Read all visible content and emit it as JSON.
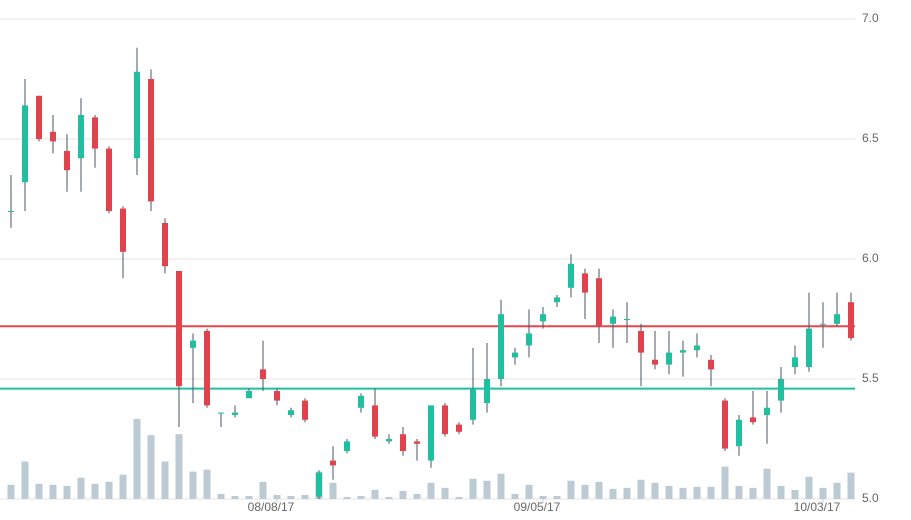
{
  "chart_data": {
    "type": "candlestick",
    "categories": [
      null,
      null,
      null,
      null,
      null,
      null,
      null,
      null,
      null,
      null,
      null,
      null,
      null,
      null,
      null,
      null,
      null,
      null,
      null,
      "08/08/17",
      null,
      null,
      null,
      null,
      null,
      null,
      null,
      null,
      null,
      null,
      null,
      null,
      null,
      null,
      null,
      null,
      null,
      null,
      "09/05/17",
      null,
      null,
      null,
      null,
      null,
      null,
      null,
      null,
      null,
      null,
      null,
      null,
      null,
      null,
      null,
      null,
      null,
      null,
      null,
      "10/03/17",
      null,
      null
    ],
    "open": [
      6.2,
      6.32,
      6.68,
      6.53,
      6.45,
      6.42,
      6.59,
      6.46,
      6.21,
      6.42,
      6.75,
      6.15,
      5.95,
      5.63,
      5.7,
      5.36,
      5.35,
      5.42,
      5.54,
      5.45,
      5.35,
      5.41,
      5.01,
      5.16,
      5.2,
      5.38,
      5.39,
      5.24,
      5.27,
      5.24,
      5.16,
      5.39,
      5.31,
      5.33,
      5.4,
      5.5,
      5.59,
      5.64,
      5.74,
      5.82,
      5.88,
      5.94,
      5.92,
      5.73,
      5.75,
      5.7,
      5.58,
      5.56,
      5.61,
      5.62,
      5.58,
      5.41,
      5.22,
      5.34,
      5.35,
      5.41,
      5.55,
      5.55,
      5.73,
      5.73,
      5.82
    ],
    "high": [
      6.35,
      6.75,
      6.68,
      6.6,
      6.52,
      6.67,
      6.6,
      6.47,
      6.22,
      6.88,
      6.79,
      6.17,
      5.95,
      5.69,
      5.71,
      5.36,
      5.39,
      5.46,
      5.66,
      5.46,
      5.38,
      5.42,
      5.12,
      5.22,
      5.25,
      5.44,
      5.46,
      5.27,
      5.3,
      5.25,
      5.39,
      5.4,
      5.32,
      5.63,
      5.65,
      5.83,
      5.63,
      5.79,
      5.8,
      5.85,
      6.02,
      5.96,
      5.96,
      5.79,
      5.82,
      5.73,
      5.7,
      5.7,
      5.66,
      5.69,
      5.6,
      5.42,
      5.35,
      5.45,
      5.45,
      5.55,
      5.64,
      5.86,
      5.82,
      5.86,
      5.86
    ],
    "low": [
      6.13,
      6.2,
      6.49,
      6.44,
      6.28,
      6.28,
      6.38,
      6.19,
      5.92,
      6.35,
      6.2,
      5.94,
      5.3,
      5.4,
      5.38,
      5.3,
      5.34,
      5.42,
      5.45,
      5.39,
      5.34,
      5.32,
      5.0,
      5.08,
      5.19,
      5.36,
      5.25,
      5.23,
      5.18,
      5.16,
      5.13,
      5.26,
      5.27,
      5.31,
      5.36,
      5.47,
      5.56,
      5.59,
      5.71,
      5.8,
      5.84,
      5.75,
      5.65,
      5.63,
      5.65,
      5.47,
      5.54,
      5.52,
      5.51,
      5.59,
      5.47,
      5.2,
      5.18,
      5.31,
      5.23,
      5.36,
      5.52,
      5.53,
      5.63,
      5.72,
      5.66
    ],
    "close": [
      6.2,
      6.64,
      6.5,
      6.49,
      6.37,
      6.6,
      6.46,
      6.2,
      6.03,
      6.78,
      6.24,
      5.97,
      5.47,
      5.66,
      5.39,
      5.36,
      5.36,
      5.45,
      5.5,
      5.41,
      5.37,
      5.33,
      5.11,
      5.14,
      5.24,
      5.43,
      5.26,
      5.25,
      5.2,
      5.23,
      5.39,
      5.27,
      5.28,
      5.46,
      5.5,
      5.77,
      5.61,
      5.69,
      5.77,
      5.84,
      5.98,
      5.86,
      5.72,
      5.76,
      5.75,
      5.61,
      5.56,
      5.61,
      5.62,
      5.64,
      5.54,
      5.21,
      5.33,
      5.32,
      5.38,
      5.5,
      5.59,
      5.71,
      5.73,
      5.77,
      5.67
    ],
    "volume": [
      14,
      37,
      15,
      14,
      13,
      21,
      15,
      17,
      24,
      79,
      63,
      37,
      64,
      27,
      29,
      5,
      3,
      3,
      17,
      4,
      3,
      4,
      27,
      16,
      2,
      3,
      9,
      2,
      8,
      5,
      16,
      11,
      2,
      20,
      18,
      25,
      5,
      14,
      3,
      3,
      18,
      14,
      17,
      10,
      11,
      19,
      16,
      13,
      11,
      12,
      12,
      32,
      13,
      11,
      30,
      13,
      9,
      22,
      11,
      16,
      26
    ],
    "colors": {
      "up": "#1fbf9f",
      "down": "#e0434e",
      "volume": "#bccad3"
    },
    "levels": [
      {
        "value": 5.72,
        "color": "#e8474f"
      },
      {
        "value": 5.46,
        "color": "#1fbf9f"
      }
    ],
    "ylim": [
      5,
      7
    ],
    "yticks": [
      {
        "value": 5,
        "label": "5.0"
      },
      {
        "value": 5.5,
        "label": "5.5"
      },
      {
        "value": 6,
        "label": "6.0"
      },
      {
        "value": 6.5,
        "label": "6.5"
      },
      {
        "value": 7,
        "label": "7.0"
      }
    ],
    "grid": true
  }
}
